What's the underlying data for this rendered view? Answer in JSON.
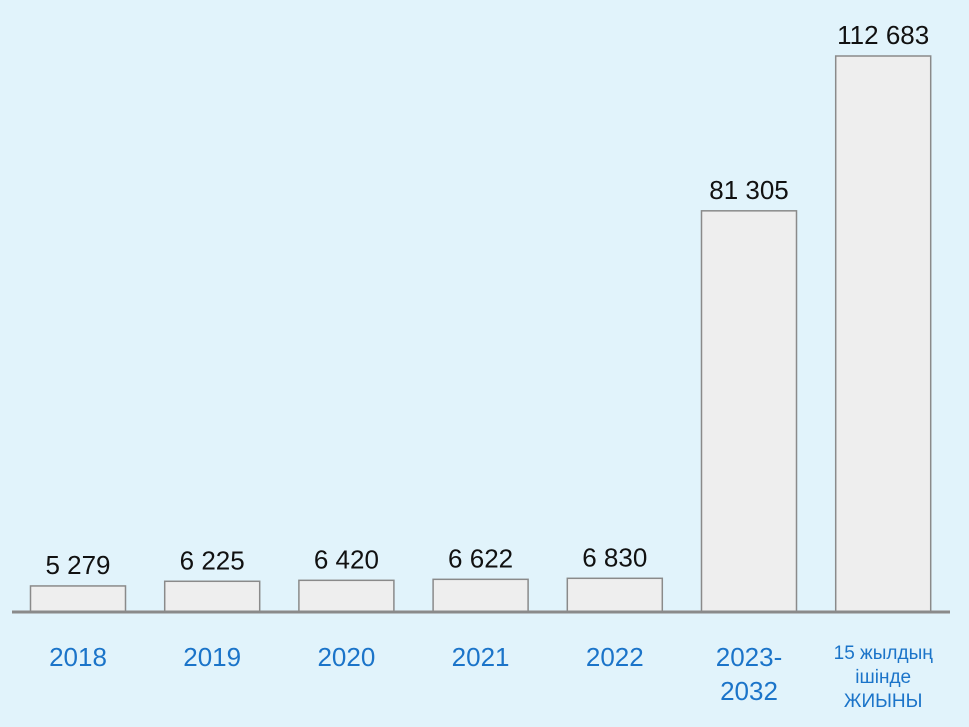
{
  "chart_data": {
    "type": "bar",
    "categories": [
      "2018",
      "2019",
      "2020",
      "2021",
      "2022",
      "2023-2032",
      "15 жылдың ішінде ЖИЫНЫ"
    ],
    "values": [
      5279,
      6225,
      6420,
      6622,
      6830,
      81305,
      112683
    ],
    "value_labels": [
      "5 279",
      "6 225",
      "6 420",
      "6 622",
      "6 830",
      "81 305",
      "112 683"
    ],
    "color": "#eeeeee"
  }
}
